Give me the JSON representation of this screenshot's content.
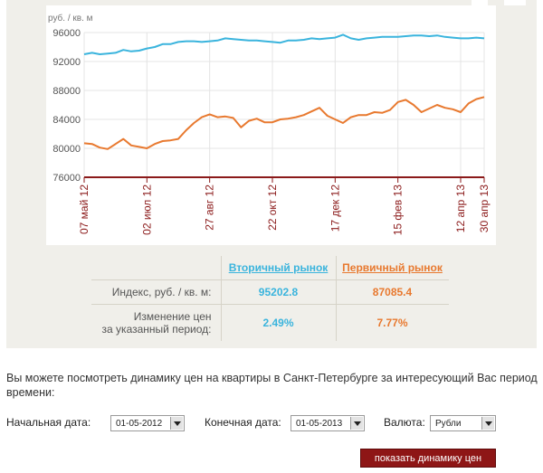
{
  "chart_data": {
    "type": "line",
    "ylabel": "руб. / кв. м",
    "ylim": [
      76000,
      96000
    ],
    "yticks": [
      76000,
      80000,
      84000,
      88000,
      92000,
      96000
    ],
    "xtick_labels": [
      "07 май 12",
      "02 июл 12",
      "27 авг 12",
      "22 окт 12",
      "17 дек 12",
      "15 фев 13",
      "12 апр 13",
      "30 апр 13"
    ],
    "xtick_weeks": [
      0,
      8,
      16,
      24,
      32,
      40,
      48,
      51
    ],
    "grid": true,
    "series": [
      {
        "name": "Вторичный рынок",
        "color": "#3ab4dd",
        "values": [
          93000,
          93200,
          93000,
          93100,
          93200,
          93600,
          93400,
          93500,
          93800,
          94000,
          94400,
          94400,
          94700,
          94800,
          94800,
          94700,
          94800,
          94900,
          95200,
          95100,
          95000,
          94900,
          94900,
          94800,
          94700,
          94600,
          94900,
          94900,
          95000,
          95200,
          95100,
          95200,
          95300,
          95700,
          95200,
          95000,
          95200,
          95300,
          95400,
          95400,
          95400,
          95500,
          95600,
          95600,
          95500,
          95600,
          95400,
          95300,
          95200,
          95200,
          95300,
          95203
        ]
      },
      {
        "name": "Первичный рынок",
        "color": "#e8792f",
        "values": [
          80700,
          80600,
          80100,
          79900,
          80600,
          81300,
          80400,
          80200,
          80000,
          80600,
          81000,
          81100,
          81300,
          82500,
          83500,
          84300,
          84700,
          84300,
          84400,
          84200,
          82900,
          83800,
          84100,
          83600,
          83600,
          84000,
          84100,
          84300,
          84600,
          85100,
          85600,
          84500,
          84000,
          83500,
          84300,
          84600,
          84600,
          85000,
          84900,
          85300,
          86400,
          86700,
          86000,
          85000,
          85500,
          86000,
          85600,
          85400,
          85000,
          86200,
          86800,
          87085
        ]
      }
    ]
  },
  "table": {
    "headers": [
      "",
      "Вторичный рынок",
      "Первичный рынок"
    ],
    "index_label": "Индекс, руб. / кв. м:",
    "index_secondary": "95202.8",
    "index_primary": "87085.4",
    "change_label_line1": "Изменение цен",
    "change_label_line2": "за указанный период:",
    "change_secondary": "2.49%",
    "change_primary": "7.77%"
  },
  "info_text": "Вы можете посмотреть динамику цен на квартиры в Санкт-Петербурге за интересующий Вас период времени:",
  "form": {
    "start_label": "Начальная дата:",
    "start_value": "01-05-2012",
    "end_label": "Конечная дата:",
    "end_value": "01-05-2013",
    "currency_label": "Валюта:",
    "currency_value": "Рубли",
    "submit_label": "показать динамику цен"
  },
  "colors": {
    "secondary": "#3ab4dd",
    "primary": "#e8792f",
    "axis": "#8b1a1a",
    "button": "#8e1616",
    "panel": "#f0efea"
  }
}
